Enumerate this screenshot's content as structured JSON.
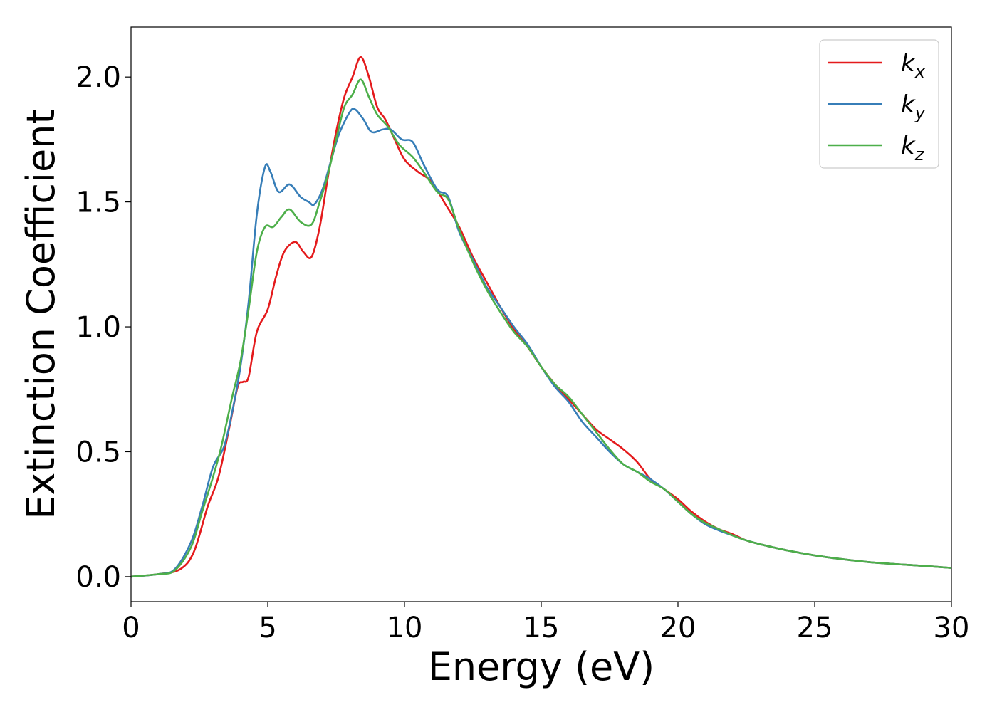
{
  "chart_data": {
    "type": "line",
    "title": "",
    "xlabel": "Energy (eV)",
    "ylabel": "Extinction Coefficient",
    "xlim": [
      0,
      30
    ],
    "ylim": [
      -0.1,
      2.2
    ],
    "xticks": [
      0,
      5,
      10,
      15,
      20,
      25,
      30
    ],
    "xtick_labels": [
      "0",
      "5",
      "10",
      "15",
      "20",
      "25",
      "30"
    ],
    "yticks": [
      0.0,
      0.5,
      1.0,
      1.5,
      2.0
    ],
    "ytick_labels": [
      "0.0",
      "0.5",
      "1.0",
      "1.5",
      "2.0"
    ],
    "grid": false,
    "legend_position": "top-right",
    "series": [
      {
        "name": "kx",
        "label_base": "k",
        "label_sub": "x",
        "color": "#e41a1c",
        "points": [
          [
            0,
            0
          ],
          [
            1,
            0.01
          ],
          [
            1.8,
            0.03
          ],
          [
            2.3,
            0.1
          ],
          [
            2.8,
            0.28
          ],
          [
            3.2,
            0.4
          ],
          [
            3.6,
            0.6
          ],
          [
            3.9,
            0.76
          ],
          [
            4.1,
            0.78
          ],
          [
            4.3,
            0.8
          ],
          [
            4.6,
            0.98
          ],
          [
            5.0,
            1.07
          ],
          [
            5.3,
            1.2
          ],
          [
            5.6,
            1.3
          ],
          [
            6.0,
            1.34
          ],
          [
            6.3,
            1.3
          ],
          [
            6.6,
            1.28
          ],
          [
            6.9,
            1.4
          ],
          [
            7.2,
            1.6
          ],
          [
            7.5,
            1.78
          ],
          [
            7.8,
            1.92
          ],
          [
            8.1,
            2.0
          ],
          [
            8.4,
            2.08
          ],
          [
            8.7,
            2.0
          ],
          [
            9.0,
            1.88
          ],
          [
            9.3,
            1.83
          ],
          [
            9.6,
            1.76
          ],
          [
            10.0,
            1.67
          ],
          [
            10.5,
            1.62
          ],
          [
            11.0,
            1.58
          ],
          [
            11.5,
            1.49
          ],
          [
            12.0,
            1.4
          ],
          [
            12.5,
            1.28
          ],
          [
            13.0,
            1.18
          ],
          [
            13.5,
            1.08
          ],
          [
            14.0,
            0.99
          ],
          [
            14.5,
            0.92
          ],
          [
            15.0,
            0.84
          ],
          [
            15.5,
            0.77
          ],
          [
            16.0,
            0.71
          ],
          [
            16.5,
            0.65
          ],
          [
            17.0,
            0.59
          ],
          [
            17.5,
            0.55
          ],
          [
            18.0,
            0.51
          ],
          [
            18.5,
            0.46
          ],
          [
            19.0,
            0.39
          ],
          [
            19.5,
            0.35
          ],
          [
            20.0,
            0.31
          ],
          [
            20.5,
            0.26
          ],
          [
            21.0,
            0.22
          ],
          [
            21.5,
            0.19
          ],
          [
            22.0,
            0.17
          ],
          [
            22.5,
            0.145
          ],
          [
            23.0,
            0.13
          ],
          [
            24.0,
            0.105
          ],
          [
            25.0,
            0.085
          ],
          [
            26.0,
            0.07
          ],
          [
            27.0,
            0.058
          ],
          [
            28.0,
            0.05
          ],
          [
            29.0,
            0.043
          ],
          [
            30.0,
            0.035
          ]
        ]
      },
      {
        "name": "ky",
        "label_base": "k",
        "label_sub": "y",
        "color": "#377eb8",
        "points": [
          [
            0,
            0
          ],
          [
            1,
            0.01
          ],
          [
            1.6,
            0.03
          ],
          [
            2.2,
            0.14
          ],
          [
            2.6,
            0.28
          ],
          [
            3.0,
            0.44
          ],
          [
            3.4,
            0.52
          ],
          [
            3.7,
            0.66
          ],
          [
            4.0,
            0.84
          ],
          [
            4.3,
            1.1
          ],
          [
            4.6,
            1.45
          ],
          [
            4.9,
            1.64
          ],
          [
            5.1,
            1.62
          ],
          [
            5.4,
            1.54
          ],
          [
            5.8,
            1.57
          ],
          [
            6.2,
            1.52
          ],
          [
            6.5,
            1.5
          ],
          [
            6.7,
            1.49
          ],
          [
            7.0,
            1.55
          ],
          [
            7.3,
            1.66
          ],
          [
            7.6,
            1.77
          ],
          [
            8.0,
            1.86
          ],
          [
            8.2,
            1.87
          ],
          [
            8.5,
            1.83
          ],
          [
            8.8,
            1.78
          ],
          [
            9.2,
            1.79
          ],
          [
            9.5,
            1.79
          ],
          [
            9.9,
            1.75
          ],
          [
            10.3,
            1.74
          ],
          [
            10.7,
            1.65
          ],
          [
            11.2,
            1.55
          ],
          [
            11.6,
            1.52
          ],
          [
            12.0,
            1.38
          ],
          [
            12.5,
            1.27
          ],
          [
            13.0,
            1.16
          ],
          [
            13.5,
            1.08
          ],
          [
            14.0,
            1.0
          ],
          [
            14.5,
            0.93
          ],
          [
            15.0,
            0.84
          ],
          [
            15.5,
            0.76
          ],
          [
            16.0,
            0.7
          ],
          [
            16.5,
            0.62
          ],
          [
            17.0,
            0.56
          ],
          [
            17.5,
            0.5
          ],
          [
            18.0,
            0.45
          ],
          [
            18.5,
            0.42
          ],
          [
            19.0,
            0.39
          ],
          [
            19.5,
            0.35
          ],
          [
            20.0,
            0.3
          ],
          [
            20.5,
            0.25
          ],
          [
            21.0,
            0.21
          ],
          [
            21.5,
            0.185
          ],
          [
            22.0,
            0.165
          ],
          [
            22.5,
            0.145
          ],
          [
            23.0,
            0.13
          ],
          [
            24.0,
            0.105
          ],
          [
            25.0,
            0.085
          ],
          [
            26.0,
            0.07
          ],
          [
            27.0,
            0.058
          ],
          [
            28.0,
            0.05
          ],
          [
            29.0,
            0.043
          ],
          [
            30.0,
            0.035
          ]
        ]
      },
      {
        "name": "kz",
        "label_base": "k",
        "label_sub": "z",
        "color": "#4daf4a",
        "points": [
          [
            0,
            0
          ],
          [
            1,
            0.01
          ],
          [
            1.6,
            0.025
          ],
          [
            2.2,
            0.12
          ],
          [
            2.6,
            0.26
          ],
          [
            3.0,
            0.4
          ],
          [
            3.3,
            0.52
          ],
          [
            3.7,
            0.72
          ],
          [
            4.0,
            0.86
          ],
          [
            4.3,
            1.07
          ],
          [
            4.6,
            1.3
          ],
          [
            4.9,
            1.4
          ],
          [
            5.2,
            1.4
          ],
          [
            5.5,
            1.44
          ],
          [
            5.8,
            1.47
          ],
          [
            6.2,
            1.42
          ],
          [
            6.6,
            1.41
          ],
          [
            6.9,
            1.5
          ],
          [
            7.2,
            1.61
          ],
          [
            7.5,
            1.75
          ],
          [
            7.8,
            1.88
          ],
          [
            8.1,
            1.93
          ],
          [
            8.4,
            1.99
          ],
          [
            8.7,
            1.92
          ],
          [
            9.0,
            1.85
          ],
          [
            9.4,
            1.8
          ],
          [
            9.8,
            1.73
          ],
          [
            10.3,
            1.68
          ],
          [
            10.7,
            1.62
          ],
          [
            11.2,
            1.54
          ],
          [
            11.6,
            1.51
          ],
          [
            12.0,
            1.39
          ],
          [
            12.5,
            1.26
          ],
          [
            13.0,
            1.15
          ],
          [
            13.5,
            1.06
          ],
          [
            14.0,
            0.98
          ],
          [
            14.5,
            0.92
          ],
          [
            15.0,
            0.84
          ],
          [
            15.5,
            0.77
          ],
          [
            16.0,
            0.72
          ],
          [
            16.5,
            0.65
          ],
          [
            17.0,
            0.58
          ],
          [
            17.5,
            0.51
          ],
          [
            18.0,
            0.45
          ],
          [
            18.5,
            0.42
          ],
          [
            19.0,
            0.38
          ],
          [
            19.5,
            0.35
          ],
          [
            20.0,
            0.3
          ],
          [
            20.5,
            0.25
          ],
          [
            21.0,
            0.215
          ],
          [
            21.5,
            0.19
          ],
          [
            22.0,
            0.165
          ],
          [
            22.5,
            0.145
          ],
          [
            23.0,
            0.13
          ],
          [
            24.0,
            0.105
          ],
          [
            25.0,
            0.085
          ],
          [
            26.0,
            0.07
          ],
          [
            27.0,
            0.058
          ],
          [
            28.0,
            0.05
          ],
          [
            29.0,
            0.043
          ],
          [
            30.0,
            0.035
          ]
        ]
      }
    ]
  }
}
